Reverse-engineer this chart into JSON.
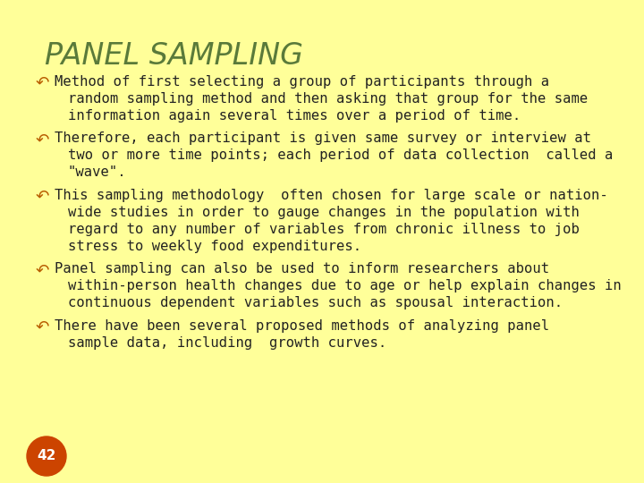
{
  "title": "PANEL SAMPLING",
  "title_color": "#5a7a3a",
  "title_fontsize": 24,
  "background_color": "#ffff99",
  "border_color": "#999999",
  "text_color": "#222222",
  "bullet_color": "#b85c00",
  "body_fontsize": 11.2,
  "page_number": "42",
  "page_num_bg": "#cc4400",
  "page_num_color": "#ffffff",
  "bullets": [
    " Method of first selecting a group of participants through a\n   random sampling method and then asking that group for the same\n   information again several times over a period of time.",
    " Therefore, each participant is given same survey or interview at\n   two or more time points; each period of data collection  called a\n   \"wave\".",
    " This sampling methodology  often chosen for large scale or nation-\n   wide studies in order to gauge changes in the population with\n   regard to any number of variables from chronic illness to job\n   stress to weekly food expenditures.",
    " Panel sampling can also be used to inform researchers about\n   within-person health changes due to age or help explain changes in\n   continuous dependent variables such as spousal interaction.",
    " There have been several proposed methods of analyzing panel\n   sample data, including  growth curves."
  ],
  "bullet_symbol": "↶"
}
